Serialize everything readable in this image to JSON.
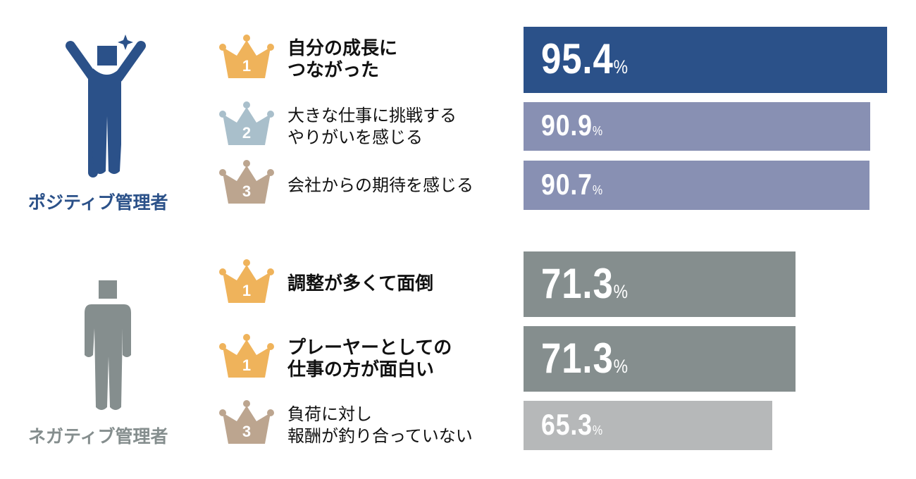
{
  "chart_data": {
    "type": "bar",
    "orientation": "horizontal",
    "unit": "%",
    "groups": [
      {
        "name": "ポジティブ管理者",
        "color": "#2b5189",
        "items": [
          {
            "rank": "1",
            "label": "自分の成長に\nつながった",
            "value": 95.4,
            "bold": true,
            "color": "#2b5189"
          },
          {
            "rank": "2",
            "label": "大きな仕事に挑戦する\nやりがいを感じる",
            "value": 90.9,
            "bold": false,
            "color": "#8890b3"
          },
          {
            "rank": "3",
            "label": "会社からの期待を感じる",
            "value": 90.7,
            "bold": false,
            "color": "#8890b3"
          }
        ]
      },
      {
        "name": "ネガティブ管理者",
        "color": "#858e8e",
        "items": [
          {
            "rank": "1",
            "label": "調整が多くて面倒",
            "value": 71.3,
            "bold": true,
            "color": "#858e8e"
          },
          {
            "rank": "1",
            "label": "プレーヤーとしての\n仕事の方が面白い",
            "value": 71.3,
            "bold": true,
            "color": "#858e8e"
          },
          {
            "rank": "3",
            "label": "負荷に対し\n報酬が釣り合っていない",
            "value": 65.3,
            "bold": false,
            "color": "#b6b8b9"
          }
        ]
      }
    ]
  },
  "crown_colors": {
    "1": "#efb35b",
    "2": "#a9bfcb",
    "3": "#bca58f"
  }
}
